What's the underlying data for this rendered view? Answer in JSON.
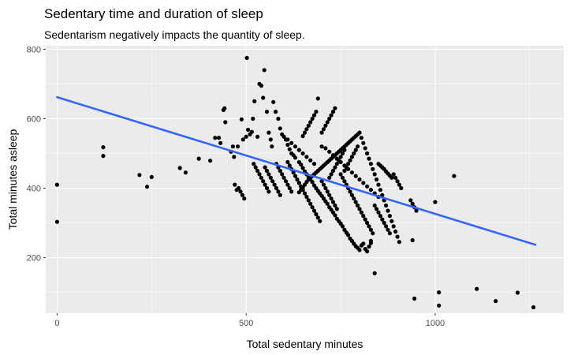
{
  "chart_data": {
    "type": "scatter",
    "title": "Sedentary time and duration of sleep",
    "subtitle": "Sedentarism negatively impacts the quantity of sleep.",
    "xlabel": "Total sedentary minutes",
    "ylabel": "Total minutes asleep",
    "xlim": [
      -30,
      1340
    ],
    "ylim": [
      40,
      810
    ],
    "x_ticks": [
      0,
      500,
      1000
    ],
    "y_ticks": [
      200,
      400,
      600,
      800
    ],
    "x_tick_labels": [
      "0",
      "500",
      "1000"
    ],
    "y_tick_labels": [
      "200",
      "400",
      "600",
      "800"
    ],
    "grid": true,
    "point_color": "#000000",
    "trend_color": "#3366FF",
    "panel_color": "#EBEBEB",
    "trend_line": {
      "x": [
        0,
        1265
      ],
      "y": [
        662,
        237
      ]
    },
    "points": [
      [
        0,
        410
      ],
      [
        0,
        303
      ],
      [
        122,
        518
      ],
      [
        122,
        493
      ],
      [
        218,
        438
      ],
      [
        238,
        404
      ],
      [
        250,
        432
      ],
      [
        325,
        458
      ],
      [
        340,
        445
      ],
      [
        375,
        485
      ],
      [
        405,
        479
      ],
      [
        418,
        545
      ],
      [
        428,
        545
      ],
      [
        432,
        530
      ],
      [
        440,
        625
      ],
      [
        443,
        630
      ],
      [
        445,
        590
      ],
      [
        460,
        505
      ],
      [
        465,
        520
      ],
      [
        468,
        490
      ],
      [
        478,
        520
      ],
      [
        488,
        598
      ],
      [
        492,
        540
      ],
      [
        500,
        548
      ],
      [
        502,
        775
      ],
      [
        505,
        568
      ],
      [
        510,
        555
      ],
      [
        515,
        562
      ],
      [
        518,
        600
      ],
      [
        522,
        650
      ],
      [
        530,
        548
      ],
      [
        535,
        700
      ],
      [
        540,
        695
      ],
      [
        545,
        660
      ],
      [
        548,
        740
      ],
      [
        555,
        620
      ],
      [
        560,
        560
      ],
      [
        565,
        540
      ],
      [
        568,
        520
      ],
      [
        572,
        648
      ],
      [
        578,
        620
      ],
      [
        585,
        600
      ],
      [
        590,
        572
      ],
      [
        595,
        555
      ],
      [
        600,
        548
      ],
      [
        605,
        540
      ],
      [
        610,
        525
      ],
      [
        615,
        512
      ],
      [
        620,
        500
      ],
      [
        625,
        495
      ],
      [
        630,
        488
      ],
      [
        640,
        475
      ],
      [
        645,
        468
      ],
      [
        650,
        458
      ],
      [
        655,
        448
      ],
      [
        660,
        440
      ],
      [
        665,
        432
      ],
      [
        670,
        425
      ],
      [
        675,
        418
      ],
      [
        680,
        408
      ],
      [
        685,
        400
      ],
      [
        690,
        392
      ],
      [
        695,
        385
      ],
      [
        700,
        378
      ],
      [
        705,
        370
      ],
      [
        710,
        362
      ],
      [
        715,
        355
      ],
      [
        720,
        345
      ],
      [
        725,
        338
      ],
      [
        730,
        330
      ],
      [
        735,
        322
      ],
      [
        740,
        312
      ],
      [
        745,
        305
      ],
      [
        750,
        298
      ],
      [
        755,
        290
      ],
      [
        760,
        280
      ],
      [
        765,
        272
      ],
      [
        770,
        265
      ],
      [
        775,
        255
      ],
      [
        780,
        248
      ],
      [
        785,
        240
      ],
      [
        790,
        233
      ],
      [
        795,
        228
      ],
      [
        800,
        222
      ],
      [
        805,
        235
      ],
      [
        810,
        240
      ],
      [
        815,
        225
      ],
      [
        820,
        218
      ],
      [
        825,
        232
      ],
      [
        830,
        242
      ],
      [
        640,
        388
      ],
      [
        645,
        395
      ],
      [
        650,
        402
      ],
      [
        655,
        410
      ],
      [
        660,
        418
      ],
      [
        665,
        425
      ],
      [
        670,
        430
      ],
      [
        675,
        435
      ],
      [
        680,
        440
      ],
      [
        685,
        445
      ],
      [
        690,
        450
      ],
      [
        695,
        455
      ],
      [
        700,
        460
      ],
      [
        705,
        465
      ],
      [
        710,
        470
      ],
      [
        715,
        475
      ],
      [
        720,
        480
      ],
      [
        725,
        485
      ],
      [
        730,
        490
      ],
      [
        735,
        495
      ],
      [
        740,
        500
      ],
      [
        745,
        505
      ],
      [
        750,
        510
      ],
      [
        755,
        515
      ],
      [
        760,
        520
      ],
      [
        765,
        525
      ],
      [
        770,
        530
      ],
      [
        775,
        535
      ],
      [
        780,
        540
      ],
      [
        785,
        545
      ],
      [
        790,
        550
      ],
      [
        795,
        555
      ],
      [
        800,
        560
      ],
      [
        805,
        545
      ],
      [
        810,
        530
      ],
      [
        815,
        515
      ],
      [
        820,
        500
      ],
      [
        825,
        485
      ],
      [
        830,
        470
      ],
      [
        835,
        455
      ],
      [
        840,
        440
      ],
      [
        845,
        425
      ],
      [
        850,
        410
      ],
      [
        855,
        395
      ],
      [
        860,
        380
      ],
      [
        865,
        365
      ],
      [
        870,
        350
      ],
      [
        875,
        335
      ],
      [
        880,
        320
      ],
      [
        885,
        305
      ],
      [
        890,
        290
      ],
      [
        895,
        275
      ],
      [
        900,
        260
      ],
      [
        905,
        245
      ],
      [
        610,
        475
      ],
      [
        615,
        465
      ],
      [
        620,
        455
      ],
      [
        625,
        445
      ],
      [
        630,
        435
      ],
      [
        635,
        425
      ],
      [
        640,
        415
      ],
      [
        645,
        405
      ],
      [
        650,
        395
      ],
      [
        655,
        385
      ],
      [
        660,
        375
      ],
      [
        665,
        365
      ],
      [
        670,
        355
      ],
      [
        675,
        345
      ],
      [
        680,
        335
      ],
      [
        685,
        325
      ],
      [
        690,
        315
      ],
      [
        695,
        305
      ],
      [
        580,
        470
      ],
      [
        585,
        460
      ],
      [
        590,
        450
      ],
      [
        595,
        440
      ],
      [
        600,
        430
      ],
      [
        605,
        420
      ],
      [
        610,
        410
      ],
      [
        615,
        400
      ],
      [
        620,
        390
      ],
      [
        550,
        460
      ],
      [
        555,
        450
      ],
      [
        560,
        440
      ],
      [
        565,
        430
      ],
      [
        570,
        420
      ],
      [
        575,
        410
      ],
      [
        580,
        400
      ],
      [
        585,
        390
      ],
      [
        590,
        380
      ],
      [
        520,
        470
      ],
      [
        525,
        460
      ],
      [
        530,
        450
      ],
      [
        535,
        440
      ],
      [
        540,
        430
      ],
      [
        545,
        420
      ],
      [
        550,
        410
      ],
      [
        555,
        400
      ],
      [
        560,
        390
      ],
      [
        480,
        400
      ],
      [
        485,
        390
      ],
      [
        490,
        380
      ],
      [
        495,
        370
      ],
      [
        470,
        410
      ],
      [
        475,
        395
      ],
      [
        700,
        420
      ],
      [
        705,
        410
      ],
      [
        710,
        400
      ],
      [
        715,
        390
      ],
      [
        720,
        380
      ],
      [
        725,
        370
      ],
      [
        730,
        360
      ],
      [
        735,
        350
      ],
      [
        740,
        340
      ],
      [
        750,
        440
      ],
      [
        755,
        430
      ],
      [
        760,
        420
      ],
      [
        765,
        410
      ],
      [
        770,
        400
      ],
      [
        775,
        390
      ],
      [
        780,
        380
      ],
      [
        785,
        370
      ],
      [
        790,
        360
      ],
      [
        795,
        350
      ],
      [
        800,
        340
      ],
      [
        805,
        330
      ],
      [
        810,
        320
      ],
      [
        815,
        310
      ],
      [
        820,
        300
      ],
      [
        825,
        290
      ],
      [
        830,
        280
      ],
      [
        835,
        270
      ],
      [
        720,
        430
      ],
      [
        725,
        440
      ],
      [
        730,
        450
      ],
      [
        735,
        460
      ],
      [
        740,
        470
      ],
      [
        745,
        480
      ],
      [
        750,
        490
      ],
      [
        755,
        500
      ],
      [
        760,
        510
      ],
      [
        700,
        560
      ],
      [
        705,
        570
      ],
      [
        710,
        580
      ],
      [
        715,
        590
      ],
      [
        720,
        600
      ],
      [
        725,
        610
      ],
      [
        730,
        620
      ],
      [
        735,
        630
      ],
      [
        650,
        550
      ],
      [
        655,
        560
      ],
      [
        660,
        570
      ],
      [
        665,
        580
      ],
      [
        670,
        590
      ],
      [
        675,
        600
      ],
      [
        680,
        610
      ],
      [
        685,
        620
      ],
      [
        690,
        658
      ],
      [
        760,
        450
      ],
      [
        765,
        460
      ],
      [
        770,
        470
      ],
      [
        775,
        480
      ],
      [
        780,
        490
      ],
      [
        785,
        500
      ],
      [
        790,
        510
      ],
      [
        795,
        520
      ],
      [
        840,
        350
      ],
      [
        845,
        340
      ],
      [
        850,
        330
      ],
      [
        855,
        320
      ],
      [
        860,
        310
      ],
      [
        865,
        300
      ],
      [
        870,
        290
      ],
      [
        875,
        280
      ],
      [
        880,
        270
      ],
      [
        610,
        540
      ],
      [
        620,
        530
      ],
      [
        630,
        520
      ],
      [
        640,
        510
      ],
      [
        650,
        500
      ],
      [
        660,
        490
      ],
      [
        670,
        480
      ],
      [
        680,
        470
      ],
      [
        700,
        520
      ],
      [
        710,
        515
      ],
      [
        720,
        505
      ],
      [
        730,
        495
      ],
      [
        740,
        485
      ],
      [
        750,
        475
      ],
      [
        760,
        465
      ],
      [
        770,
        455
      ],
      [
        780,
        445
      ],
      [
        790,
        435
      ],
      [
        800,
        425
      ],
      [
        810,
        415
      ],
      [
        820,
        405
      ],
      [
        830,
        395
      ],
      [
        840,
        385
      ],
      [
        850,
        375
      ],
      [
        850,
        470
      ],
      [
        855,
        465
      ],
      [
        860,
        460
      ],
      [
        865,
        455
      ],
      [
        870,
        448
      ],
      [
        875,
        442
      ],
      [
        880,
        436
      ],
      [
        885,
        430
      ],
      [
        890,
        440
      ],
      [
        895,
        430
      ],
      [
        900,
        420
      ],
      [
        905,
        410
      ],
      [
        910,
        400
      ],
      [
        935,
        365
      ],
      [
        940,
        355
      ],
      [
        945,
        345
      ],
      [
        950,
        335
      ],
      [
        940,
        250
      ],
      [
        945,
        82
      ],
      [
        1000,
        360
      ],
      [
        1010,
        100
      ],
      [
        1010,
        62
      ],
      [
        1050,
        435
      ],
      [
        1110,
        110
      ],
      [
        1160,
        75
      ],
      [
        1218,
        99
      ],
      [
        1260,
        57
      ],
      [
        840,
        155
      ],
      [
        830,
        248
      ]
    ]
  }
}
